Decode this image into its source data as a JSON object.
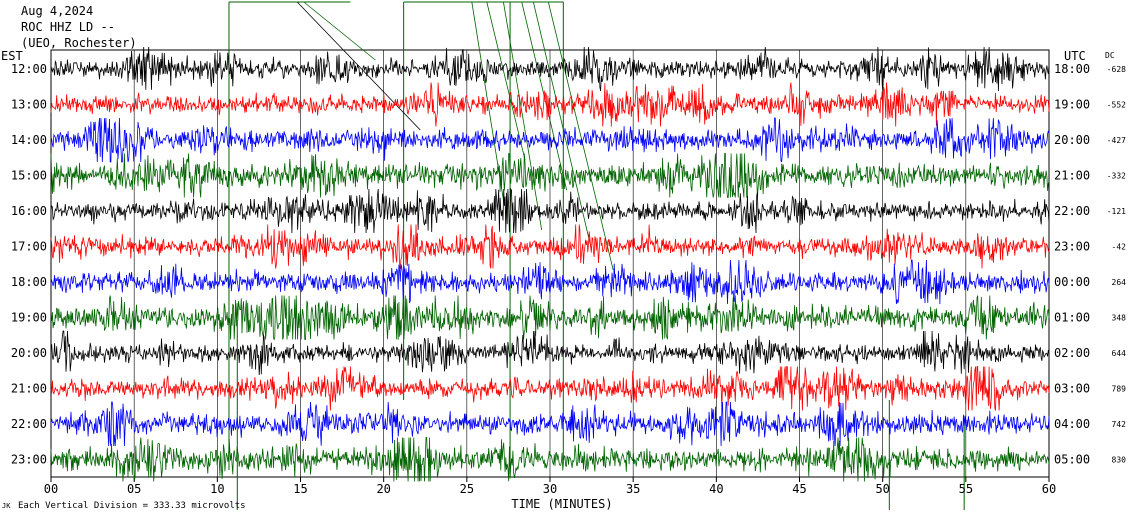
{
  "header": {
    "date": "Aug 4,2024",
    "station": "ROC HHZ LD --",
    "location": "(UEO, Rochester)"
  },
  "left_axis_label": "EST",
  "right_axis_label": "UTC",
  "dc_label": "DC",
  "footer": {
    "scale_note": "Each Vertical Division =  333.33 microvolts"
  },
  "colors": {
    "black": "#000000",
    "red": "#ff0000",
    "blue": "#0000ff",
    "green": "#006400",
    "grid": "#000000",
    "background": "#ffffff"
  },
  "chart_data": {
    "type": "line",
    "title": "",
    "xlabel": "TIME (MINUTES)",
    "ylabel": "",
    "xlim": [
      0,
      60
    ],
    "x_ticks": [
      "00",
      "05",
      "10",
      "15",
      "20",
      "25",
      "30",
      "35",
      "40",
      "45",
      "50",
      "55",
      "60"
    ],
    "grid": "vertical lines every 5 minutes",
    "color_cycle": [
      "black",
      "red",
      "blue",
      "green"
    ],
    "rows": [
      {
        "est": "12:00",
        "utc": "18:00",
        "dc": "-628",
        "color": "black"
      },
      {
        "est": "13:00",
        "utc": "19:00",
        "dc": "-552",
        "color": "red"
      },
      {
        "est": "14:00",
        "utc": "20:00",
        "dc": "-427",
        "color": "blue"
      },
      {
        "est": "15:00",
        "utc": "21:00",
        "dc": "-332",
        "color": "green"
      },
      {
        "est": "16:00",
        "utc": "22:00",
        "dc": "-121",
        "color": "black"
      },
      {
        "est": "17:00",
        "utc": "23:00",
        "dc": "-42",
        "color": "red"
      },
      {
        "est": "18:00",
        "utc": "00:00",
        "dc": "264",
        "color": "blue"
      },
      {
        "est": "19:00",
        "utc": "01:00",
        "dc": "348",
        "color": "green"
      },
      {
        "est": "20:00",
        "utc": "02:00",
        "dc": "644",
        "color": "black"
      },
      {
        "est": "21:00",
        "utc": "03:00",
        "dc": "789",
        "color": "red"
      },
      {
        "est": "22:00",
        "utc": "04:00",
        "dc": "742",
        "color": "blue"
      },
      {
        "est": "23:00",
        "utc": "05:00",
        "dc": "830",
        "color": "green"
      }
    ]
  }
}
